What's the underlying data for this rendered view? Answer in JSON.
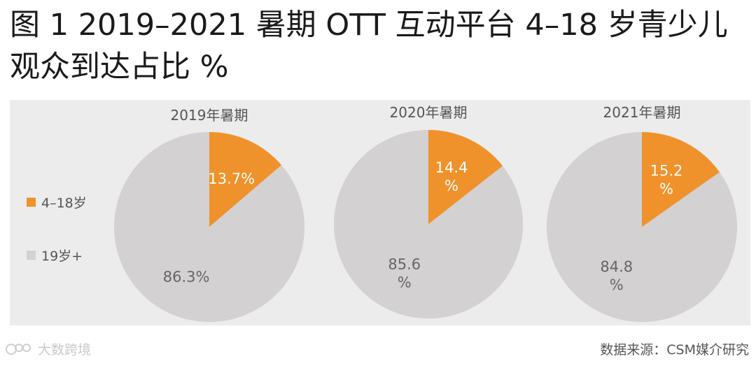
{
  "title": "图 1 2019–2021 暑期 OTT 互动平台 4–18 岁青少儿观众到达占比 %",
  "legend": [
    {
      "label": "4–18岁",
      "color": "#F0922B"
    },
    {
      "label": "19岁+",
      "color": "#D3D1D2"
    }
  ],
  "chart_data": {
    "type": "pie",
    "unit": "%",
    "series_labels": [
      "4–18岁",
      "19岁+"
    ],
    "colors": {
      "4–18岁": "#F0922B",
      "19岁+": "#D3D1D2"
    },
    "charts": [
      {
        "title": "2019年暑期",
        "values": [
          13.7,
          86.3
        ],
        "labels": [
          "13.7%",
          "86.3%"
        ]
      },
      {
        "title": "2020年暑期",
        "values": [
          14.4,
          85.6
        ],
        "labels": [
          "14.4\n%",
          "85.6\n%"
        ]
      },
      {
        "title": "2021年暑期",
        "values": [
          15.2,
          84.8
        ],
        "labels": [
          "15.2\n%",
          "84.8\n%"
        ]
      }
    ]
  },
  "footer": {
    "watermark": "大数跨境",
    "source": "数据来源：CSM媒介研究"
  }
}
